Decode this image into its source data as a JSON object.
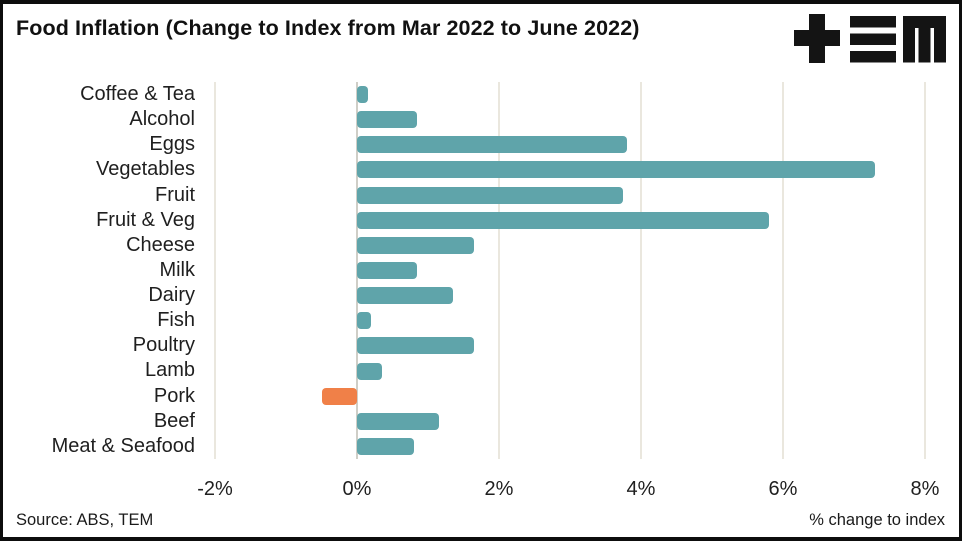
{
  "header": {
    "title": "Food Inflation (Change to Index from Mar 2022 to June 2022)",
    "logo_icon": "tem-logo"
  },
  "footer": {
    "source": "Source: ABS, TEM",
    "axis_note": "% change to index"
  },
  "colors": {
    "bar_positive": "#5fa4aa",
    "bar_negative": "#f08048",
    "gridline": "#eae7de",
    "zero_line": "#cfcec7",
    "border": "#0d0d0d",
    "text": "#1a1a1a"
  },
  "chart_data": {
    "type": "bar",
    "orientation": "horizontal",
    "title": "Food Inflation (Change to Index from Mar 2022 to June 2022)",
    "categories": [
      "Coffee & Tea",
      "Alcohol",
      "Eggs",
      "Vegetables",
      "Fruit",
      "Fruit & Veg",
      "Cheese",
      "Milk",
      "Dairy",
      "Fish",
      "Poultry",
      "Lamb",
      "Pork",
      "Beef",
      "Meat & Seafood"
    ],
    "values": [
      0.15,
      0.85,
      3.8,
      7.3,
      3.75,
      5.8,
      1.65,
      0.85,
      1.35,
      0.2,
      1.65,
      0.35,
      -0.5,
      1.15,
      0.8
    ],
    "value_unit": "%",
    "highlight_category": "Pork",
    "xlim": [
      -2,
      8
    ],
    "x_ticks": [
      {
        "value": -2,
        "label": "-2%"
      },
      {
        "value": 0,
        "label": "0%"
      },
      {
        "value": 2,
        "label": "2%"
      },
      {
        "value": 4,
        "label": "4%"
      },
      {
        "value": 6,
        "label": "6%"
      },
      {
        "value": 8,
        "label": "8%"
      }
    ],
    "xlabel": "% change to index",
    "grid": true,
    "legend": false
  }
}
